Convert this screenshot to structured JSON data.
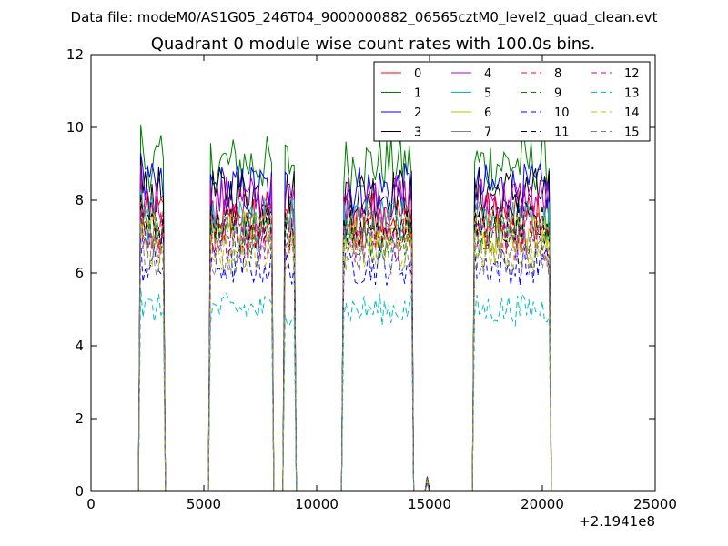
{
  "figure": {
    "suptitle": "Data file: modeM0/AS1G05_246T04_9000000882_06565cztM0_level2_quad_clean.evt"
  },
  "chart_data": {
    "type": "line",
    "title": "Quadrant 0 module wise count rates with 100.0s bins.",
    "xlabel": "",
    "ylabel": "",
    "xlim": [
      0,
      25000
    ],
    "ylim": [
      0,
      12
    ],
    "x_offset_label": "+2.1941e8",
    "x_ticks": [
      0,
      5000,
      10000,
      15000,
      20000,
      25000
    ],
    "y_ticks": [
      0,
      2,
      4,
      6,
      8,
      10,
      12
    ],
    "grid": false,
    "legend": {
      "placement": "top-right",
      "columns": 4
    },
    "segments": [
      {
        "start": 2200,
        "end": 3200
      },
      {
        "start": 5300,
        "end": 8000
      },
      {
        "start": 8600,
        "end": 9000
      },
      {
        "start": 11200,
        "end": 14200
      },
      {
        "start": 17000,
        "end": 20300
      }
    ],
    "spikes": [
      {
        "x": 14900,
        "y": 0.3
      }
    ],
    "series": [
      {
        "name": "0",
        "color": "#ff0000",
        "dashed": false,
        "mean": 7.6
      },
      {
        "name": "1",
        "color": "#008000",
        "dashed": false,
        "mean": 9.0
      },
      {
        "name": "2",
        "color": "#0000ff",
        "dashed": false,
        "mean": 8.3
      },
      {
        "name": "3",
        "color": "#000000",
        "dashed": false,
        "mean": 8.2
      },
      {
        "name": "4",
        "color": "#bf00bf",
        "dashed": false,
        "mean": 8.0
      },
      {
        "name": "5",
        "color": "#00bfbf",
        "dashed": false,
        "mean": 7.4
      },
      {
        "name": "6",
        "color": "#bfbf00",
        "dashed": false,
        "mean": 7.1
      },
      {
        "name": "7",
        "color": "#808080",
        "dashed": false,
        "mean": 7.3
      },
      {
        "name": "8",
        "color": "#ff0000",
        "dashed": true,
        "mean": 7.2
      },
      {
        "name": "9",
        "color": "#008000",
        "dashed": true,
        "mean": 7.0
      },
      {
        "name": "10",
        "color": "#0000ff",
        "dashed": true,
        "mean": 6.2
      },
      {
        "name": "11",
        "color": "#000000",
        "dashed": true,
        "mean": 7.3
      },
      {
        "name": "12",
        "color": "#bf00bf",
        "dashed": true,
        "mean": 6.9
      },
      {
        "name": "13",
        "color": "#00bfbf",
        "dashed": true,
        "mean": 5.0
      },
      {
        "name": "14",
        "color": "#bfbf00",
        "dashed": true,
        "mean": 6.6
      },
      {
        "name": "15",
        "color": "#808080",
        "dashed": true,
        "mean": 6.5
      }
    ]
  }
}
